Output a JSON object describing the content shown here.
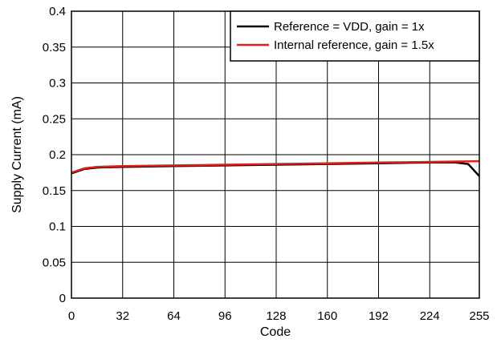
{
  "chart_data": {
    "type": "line",
    "title": "",
    "xlabel": "Code",
    "ylabel": "Supply Current (mA)",
    "xlim": [
      0,
      255
    ],
    "ylim": [
      0,
      0.4
    ],
    "xticks": [
      0,
      32,
      64,
      96,
      128,
      160,
      192,
      224,
      255
    ],
    "yticks": [
      0,
      0.05,
      0.1,
      0.15,
      0.2,
      0.25,
      0.3,
      0.35,
      0.4
    ],
    "ytick_labels": [
      "0",
      "0.05",
      "0.1",
      "0.15",
      "0.2",
      "0.25",
      "0.3",
      "0.35",
      "0.4"
    ],
    "grid": true,
    "legend_position": "top-right",
    "series": [
      {
        "name": "Reference = VDD, gain = 1x",
        "color": "#000000",
        "x": [
          0,
          8,
          16,
          32,
          64,
          96,
          128,
          160,
          192,
          224,
          240,
          248,
          255
        ],
        "y": [
          0.174,
          0.18,
          0.182,
          0.183,
          0.184,
          0.185,
          0.186,
          0.187,
          0.188,
          0.189,
          0.189,
          0.187,
          0.17
        ]
      },
      {
        "name": "Internal reference, gain = 1.5x",
        "color": "#e0201b",
        "x": [
          0,
          8,
          16,
          32,
          64,
          96,
          128,
          160,
          192,
          224,
          255
        ],
        "y": [
          0.175,
          0.181,
          0.183,
          0.184,
          0.185,
          0.186,
          0.187,
          0.188,
          0.189,
          0.19,
          0.191
        ]
      }
    ]
  }
}
